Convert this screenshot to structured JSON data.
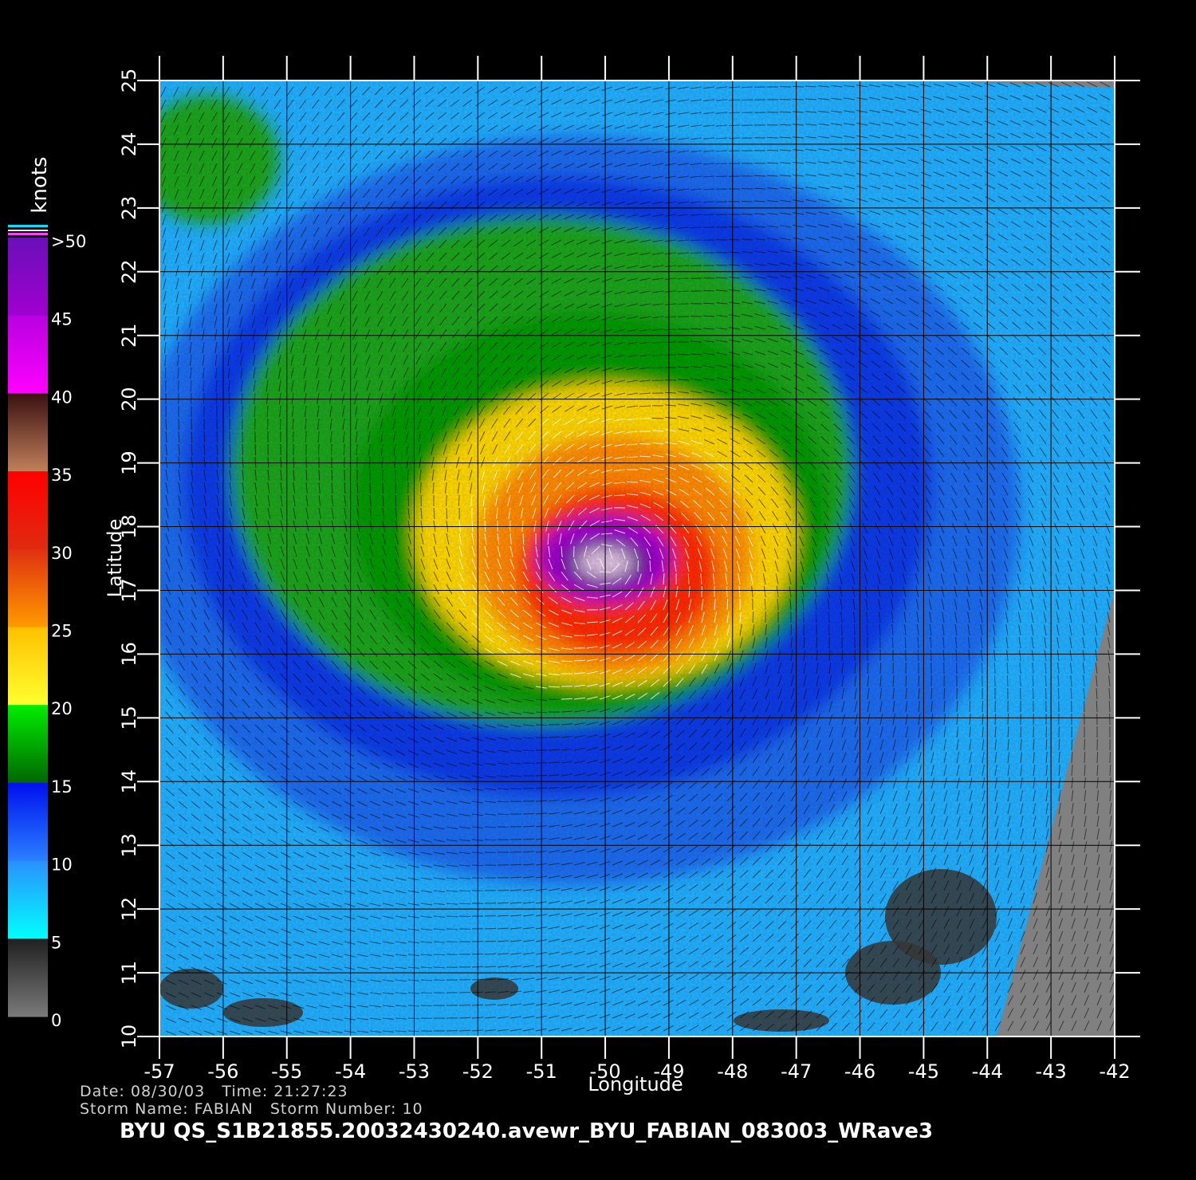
{
  "map": {
    "lon_range": [
      -57,
      -42
    ],
    "lat_range": [
      10,
      25
    ],
    "x_ticks": [
      "-57",
      "-56",
      "-55",
      "-54",
      "-53",
      "-52",
      "-51",
      "-50",
      "-49",
      "-48",
      "-47",
      "-46",
      "-45",
      "-44",
      "-43",
      "-42"
    ],
    "y_ticks": [
      "10",
      "11",
      "12",
      "13",
      "14",
      "15",
      "16",
      "17",
      "18",
      "19",
      "20",
      "21",
      "22",
      "23",
      "24",
      "25"
    ],
    "xlabel": "Longitude",
    "ylabel": "Latitude",
    "storm_center": {
      "lon": -50.0,
      "lat": 17.5
    },
    "no_data_color": "#808080",
    "vector_color": "#000000",
    "high_wind_vector_color": "#ffffff"
  },
  "colorbar": {
    "unit_label": "knots",
    "tick_labels": [
      ">50",
      "45",
      "40",
      "35",
      "30",
      "25",
      "20",
      "15",
      "10",
      "5",
      "0"
    ],
    "bands": [
      {
        "range": "45-50",
        "top": "#6a0fb8",
        "bottom": "#a000d0"
      },
      {
        "range": "40-45",
        "top": "#b800e0",
        "bottom": "#ff00ff"
      },
      {
        "range": "35-40",
        "top": "#3a1010",
        "bottom": "#c0805a"
      },
      {
        "range": "30-35",
        "top": "#ff0000",
        "bottom": "#e02a10"
      },
      {
        "range": "25-30",
        "top": "#e03010",
        "bottom": "#ff9a00"
      },
      {
        "range": "20-25",
        "top": "#ffc000",
        "bottom": "#ffff30"
      },
      {
        "range": "15-20",
        "top": "#00ee00",
        "bottom": "#006600"
      },
      {
        "range": "10-15",
        "top": "#0010ee",
        "bottom": "#2a80ff"
      },
      {
        "range": "5-10",
        "top": "#2a90ff",
        "bottom": "#00ffff"
      },
      {
        "range": "0-5",
        "top": "#202020",
        "bottom": "#7a7a7a"
      }
    ]
  },
  "footer": {
    "date_label": "Date:",
    "date_value": "08/30/03",
    "time_label": "Time:",
    "time_value": "21:27:23",
    "storm_name_label": "Storm Name:",
    "storm_name_value": "FABIAN",
    "storm_number_label": "Storm Number:",
    "storm_number_value": "10",
    "file_label": "BYU QS_S1B21855.20032430240.avewr_BYU_FABIAN_083003_WRave3"
  }
}
